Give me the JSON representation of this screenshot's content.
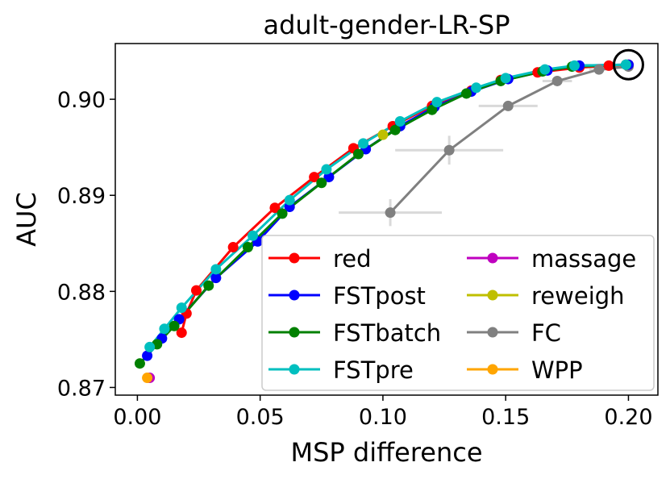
{
  "chart_data": {
    "type": "line",
    "title": "adult-gender-LR-SP",
    "xlabel": "MSP difference",
    "ylabel": "AUC",
    "xlim": [
      -0.009,
      0.212
    ],
    "ylim": [
      0.8692,
      0.9058
    ],
    "xticks": [
      0.0,
      0.05,
      0.1,
      0.15,
      0.2
    ],
    "xtick_labels": [
      "0.00",
      "0.05",
      "0.10",
      "0.15",
      "0.20"
    ],
    "yticks": [
      0.87,
      0.88,
      0.89,
      0.9
    ],
    "ytick_labels": [
      "0.87",
      "0.88",
      "0.89",
      "0.90"
    ],
    "grid": false,
    "legend": {
      "placement": "lower-right",
      "columns": 2,
      "entries": [
        "red",
        "FSTpost",
        "FSTbatch",
        "FSTpre",
        "massage",
        "reweigh",
        "FC",
        "WPP"
      ]
    },
    "series": [
      {
        "name": "red",
        "color": "#ff0000",
        "show_line": true,
        "points": [
          [
            0.018,
            0.8757
          ],
          [
            0.02,
            0.8777
          ],
          [
            0.024,
            0.8801
          ],
          [
            0.039,
            0.8846
          ],
          [
            0.056,
            0.8887
          ],
          [
            0.072,
            0.8919
          ],
          [
            0.088,
            0.8949
          ],
          [
            0.104,
            0.8972
          ],
          [
            0.12,
            0.8993
          ],
          [
            0.136,
            0.9009
          ],
          [
            0.148,
            0.902
          ],
          [
            0.163,
            0.9028
          ],
          [
            0.18,
            0.9033
          ],
          [
            0.192,
            0.9035
          ],
          [
            0.2,
            0.9036
          ]
        ]
      },
      {
        "name": "FSTpost",
        "color": "#0000ff",
        "show_line": true,
        "points": [
          [
            0.004,
            0.8733
          ],
          [
            0.01,
            0.8751
          ],
          [
            0.017,
            0.8771
          ],
          [
            0.032,
            0.8814
          ],
          [
            0.049,
            0.8852
          ],
          [
            0.062,
            0.8888
          ],
          [
            0.078,
            0.8919
          ],
          [
            0.093,
            0.8948
          ],
          [
            0.107,
            0.8972
          ],
          [
            0.121,
            0.8992
          ],
          [
            0.136,
            0.9008
          ],
          [
            0.151,
            0.9021
          ],
          [
            0.167,
            0.903
          ],
          [
            0.18,
            0.9035
          ],
          [
            0.2,
            0.9036
          ]
        ]
      },
      {
        "name": "FSTbatch",
        "color": "#008000",
        "show_line": true,
        "points": [
          [
            0.001,
            0.8725
          ],
          [
            0.008,
            0.8745
          ],
          [
            0.015,
            0.8764
          ],
          [
            0.029,
            0.8806
          ],
          [
            0.045,
            0.8846
          ],
          [
            0.059,
            0.8881
          ],
          [
            0.075,
            0.8913
          ],
          [
            0.09,
            0.8943
          ],
          [
            0.105,
            0.8968
          ],
          [
            0.12,
            0.8989
          ],
          [
            0.134,
            0.9006
          ],
          [
            0.148,
            0.9019
          ],
          [
            0.165,
            0.9029
          ],
          [
            0.177,
            0.9034
          ],
          [
            0.199,
            0.9036
          ]
        ]
      },
      {
        "name": "FSTpre",
        "color": "#00bfbf",
        "show_line": true,
        "points": [
          [
            0.005,
            0.8742
          ],
          [
            0.011,
            0.8761
          ],
          [
            0.018,
            0.8783
          ],
          [
            0.032,
            0.8823
          ],
          [
            0.047,
            0.8858
          ],
          [
            0.062,
            0.8895
          ],
          [
            0.077,
            0.8927
          ],
          [
            0.092,
            0.8954
          ],
          [
            0.107,
            0.8977
          ],
          [
            0.122,
            0.8997
          ],
          [
            0.138,
            0.9012
          ],
          [
            0.15,
            0.9022
          ],
          [
            0.166,
            0.9031
          ],
          [
            0.178,
            0.9035
          ],
          [
            0.199,
            0.9036
          ]
        ]
      },
      {
        "name": "massage",
        "color": "#bf00bf",
        "show_line": true,
        "points": [
          [
            0.005,
            0.871
          ]
        ]
      },
      {
        "name": "reweigh",
        "color": "#bfbf00",
        "show_line": true,
        "points": [
          [
            0.1,
            0.8963
          ]
        ]
      },
      {
        "name": "FC",
        "color": "#808080",
        "show_line": true,
        "points": [
          [
            0.103,
            0.8882
          ],
          [
            0.127,
            0.8947
          ],
          [
            0.151,
            0.8993
          ],
          [
            0.171,
            0.9019
          ],
          [
            0.188,
            0.9031
          ],
          [
            0.2,
            0.9034
          ]
        ],
        "xerr": [
          0.021,
          0.022,
          0.012,
          0.006,
          0.004,
          0.002
        ],
        "yerr": [
          0.0014,
          0.0015,
          0.0005,
          0.0003,
          0.0002,
          0.0001
        ]
      },
      {
        "name": "WPP",
        "color": "#ffa500",
        "show_line": true,
        "points": [
          [
            0.004,
            0.871
          ]
        ]
      }
    ],
    "annotations": [
      {
        "type": "circle",
        "label": "selected-point",
        "x": 0.2,
        "y": 0.9036
      }
    ]
  }
}
